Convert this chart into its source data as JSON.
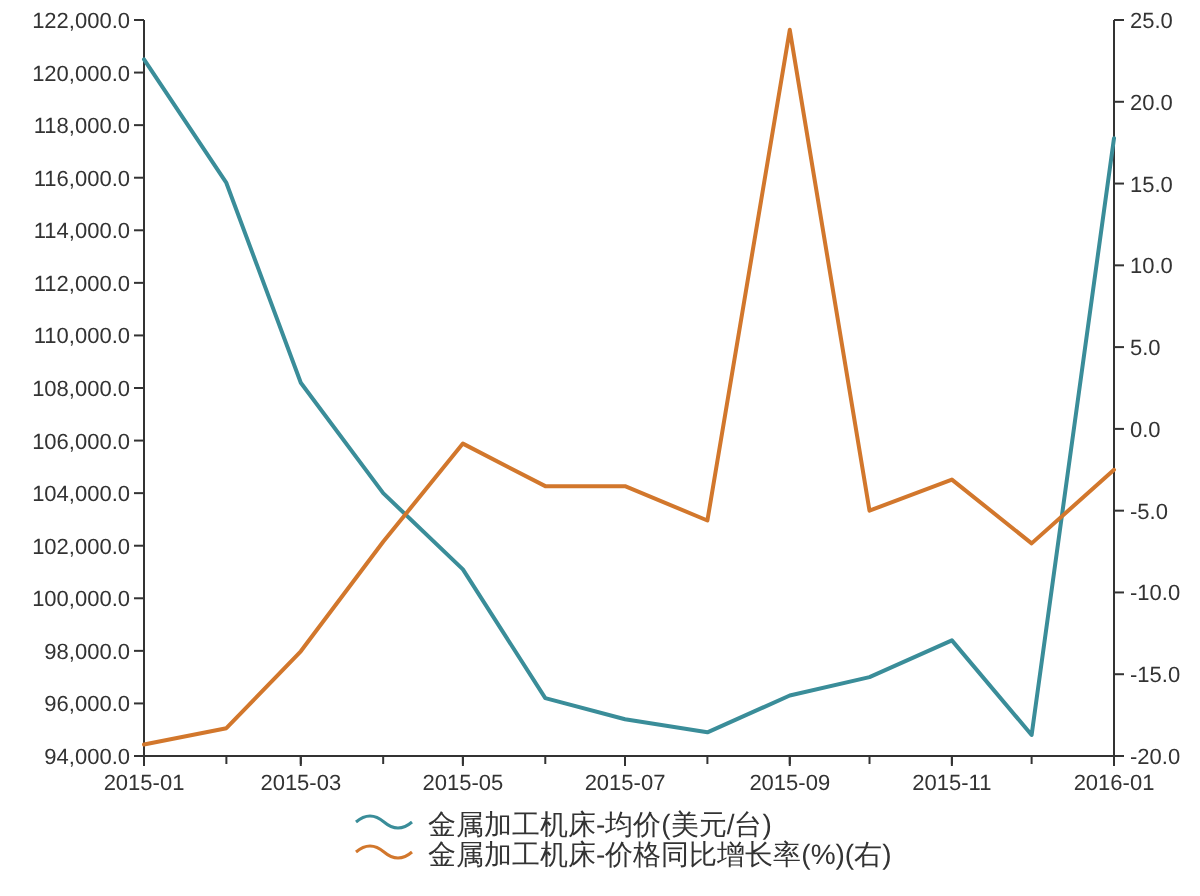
{
  "chart_data": {
    "type": "line",
    "x": [
      "2015-01",
      "2015-02",
      "2015-03",
      "2015-04",
      "2015-05",
      "2015-06",
      "2015-07",
      "2015-08",
      "2015-09",
      "2015-10",
      "2015-11",
      "2015-12",
      "2016-01"
    ],
    "series": [
      {
        "name": "金属加工机床-均价(美元/台)",
        "color": "#3a8d99",
        "values": [
          120500,
          115800,
          108200,
          104000,
          101100,
          96200,
          95400,
          94900,
          96300,
          97000,
          98400,
          94800,
          117500
        ]
      },
      {
        "name": "金属加工机床-价格同比增长率(%)(右)",
        "color": "#d2772c",
        "axis": "y2",
        "values": [
          -19.3,
          -18.3,
          -13.6,
          -6.9,
          -0.9,
          -3.5,
          -3.5,
          -5.6,
          24.4,
          -5.0,
          -3.1,
          -7.0,
          -2.5
        ]
      }
    ],
    "xlim": [
      "2015-01",
      "2016-01"
    ],
    "xticks": [
      "2015-01",
      "2015-03",
      "2015-05",
      "2015-07",
      "2015-09",
      "2015-11",
      "2016-01"
    ],
    "ylim": [
      94000,
      122000
    ],
    "yticks": [
      {
        "value": 94000,
        "label": "94,000.0"
      },
      {
        "value": 96000,
        "label": "96,000.0"
      },
      {
        "value": 98000,
        "label": "98,000.0"
      },
      {
        "value": 100000,
        "label": "100,000.0"
      },
      {
        "value": 102000,
        "label": "102,000.0"
      },
      {
        "value": 104000,
        "label": "104,000.0"
      },
      {
        "value": 106000,
        "label": "106,000.0"
      },
      {
        "value": 108000,
        "label": "108,000.0"
      },
      {
        "value": 110000,
        "label": "110,000.0"
      },
      {
        "value": 112000,
        "label": "112,000.0"
      },
      {
        "value": 114000,
        "label": "114,000.0"
      },
      {
        "value": 116000,
        "label": "116,000.0"
      },
      {
        "value": 118000,
        "label": "118,000.0"
      },
      {
        "value": 120000,
        "label": "120,000.0"
      },
      {
        "value": 122000,
        "label": "122,000.0"
      }
    ],
    "y2lim": [
      -20,
      25
    ],
    "y2ticks": [
      {
        "value": -20,
        "label": "-20.0"
      },
      {
        "value": -15,
        "label": "-15.0"
      },
      {
        "value": -10,
        "label": "-10.0"
      },
      {
        "value": -5,
        "label": "-5.0"
      },
      {
        "value": 0,
        "label": "0.0"
      },
      {
        "value": 5,
        "label": "5.0"
      },
      {
        "value": 10,
        "label": "10.0"
      },
      {
        "value": 15,
        "label": "15.0"
      },
      {
        "value": 20,
        "label": "20.0"
      },
      {
        "value": 25,
        "label": "25.0"
      }
    ],
    "grid": false,
    "legend": "bottom",
    "marker": "none",
    "line_style": "solid"
  }
}
